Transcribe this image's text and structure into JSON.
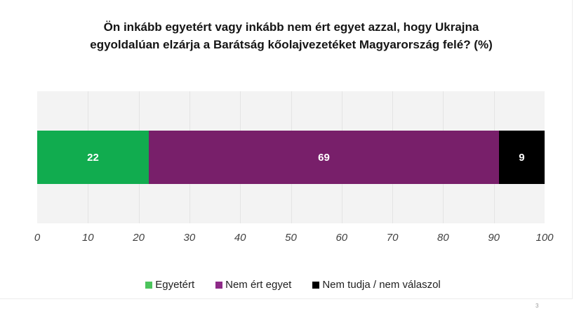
{
  "slide": {
    "title_line1": "Ön inkább egyetért vagy inkább nem ért egyet azzal, hogy Ukrajna",
    "title_line2": "egyoldalúan elzárja a Barátság kőolajvezetéket Magyarország felé? (%)",
    "page_number": "3"
  },
  "chart_data": {
    "type": "bar",
    "orientation": "horizontal",
    "stacked": true,
    "title": "Ön inkább egyetért vagy inkább nem ért egyet azzal, hogy Ukrajna egyoldalúan elzárja a Barátság kőolajvezetéket Magyarország felé? (%)",
    "categories": [
      ""
    ],
    "series": [
      {
        "name": "Egyetért",
        "values": [
          22
        ],
        "color": "#11ac4f",
        "legend_color": "#4cc45c",
        "label": "22"
      },
      {
        "name": "Nem ért egyet",
        "values": [
          69
        ],
        "color": "#781f6a",
        "legend_color": "#8e2a88",
        "label": "69"
      },
      {
        "name": "Nem tudja / nem válaszol",
        "values": [
          9
        ],
        "color": "#000000",
        "legend_color": "#000000",
        "label": "9"
      }
    ],
    "xlabel": "",
    "ylabel": "",
    "xlim": [
      0,
      100
    ],
    "x_ticks": [
      "0",
      "10",
      "20",
      "30",
      "40",
      "50",
      "60",
      "70",
      "80",
      "90",
      "100"
    ],
    "grid": true,
    "legend_position": "bottom",
    "plot_background": "#f3f3f3"
  }
}
